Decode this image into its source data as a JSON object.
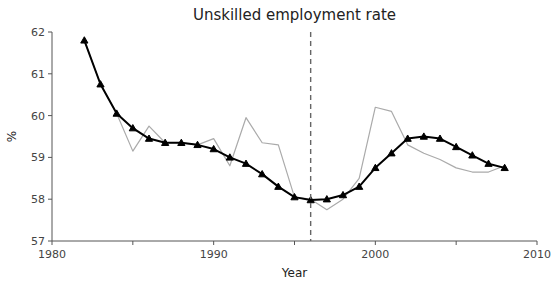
{
  "chart_data": {
    "type": "line",
    "title": "Unskilled employment rate",
    "x_label": "Year",
    "y_label": "%",
    "x": [
      1982,
      1983,
      1984,
      1985,
      1986,
      1987,
      1988,
      1989,
      1990,
      1991,
      1992,
      1993,
      1994,
      1995,
      1996,
      1997,
      1998,
      1999,
      2000,
      2001,
      2002,
      2003,
      2004,
      2005,
      2006,
      2007,
      2008
    ],
    "series": [
      {
        "color": "#aaaaaa",
        "line_style": "solid",
        "values": [
          61.8,
          60.75,
          60.05,
          59.15,
          59.75,
          59.35,
          59.35,
          59.3,
          59.45,
          58.8,
          59.95,
          59.35,
          59.3,
          58.05,
          58.0,
          57.75,
          58.0,
          58.5,
          60.2,
          60.1,
          59.3,
          59.1,
          58.95,
          58.75,
          58.65,
          58.65,
          58.8
        ]
      },
      {
        "color": "#000000",
        "line_style": "solid",
        "marker": "triangle",
        "values": [
          61.8,
          60.75,
          60.05,
          59.7,
          59.45,
          59.35,
          59.35,
          59.3,
          59.2,
          59.0,
          58.85,
          58.6,
          58.3,
          58.05,
          57.98,
          58.0,
          58.1,
          58.3,
          58.75,
          59.1,
          59.45,
          59.5,
          59.45,
          59.25,
          59.05,
          58.85,
          58.75
        ]
      }
    ],
    "vline": 1996,
    "xlim": [
      1980,
      2010
    ],
    "ylim": [
      57,
      62
    ],
    "xticks": [
      1980,
      {
        "value": 1985,
        "label": null
      },
      1990,
      {
        "value": 1995,
        "label": null
      },
      2000,
      {
        "value": 2005,
        "label": null
      },
      2010
    ],
    "yticks": [
      57,
      58,
      59,
      60,
      61,
      62
    ],
    "grid": false
  }
}
